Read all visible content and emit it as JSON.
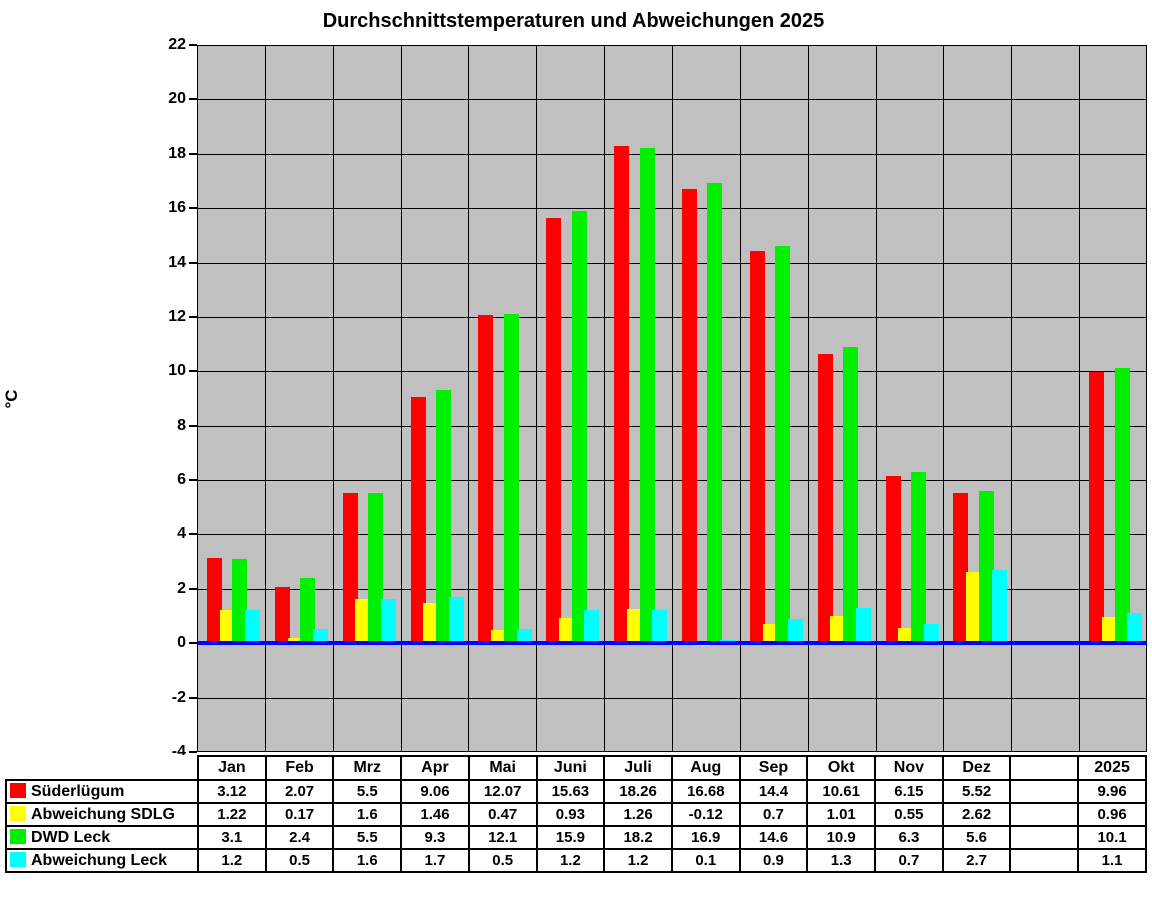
{
  "chart_data": {
    "type": "bar",
    "title": "Durchschnittstemperaturen und Abweichungen 2025",
    "ylabel": "°C",
    "xlabel": "",
    "ylim": [
      -4,
      22
    ],
    "ytick_step": 2,
    "grid": true,
    "plot_bg": "#C0C0C0",
    "gridline_color": "#000000",
    "zero_line_color": "#0000FF",
    "legend_position": "table-left",
    "categories": [
      "Jan",
      "Feb",
      "Mrz",
      "Apr",
      "Mai",
      "Juni",
      "Juli",
      "Aug",
      "Sep",
      "Okt",
      "Nov",
      "Dez",
      "",
      "2025"
    ],
    "series": [
      {
        "name": "Süderlügum",
        "color": "#FF0000",
        "values": [
          3.12,
          2.07,
          5.5,
          9.06,
          12.07,
          15.63,
          18.26,
          16.68,
          14.4,
          10.61,
          6.15,
          5.52,
          null,
          9.96
        ]
      },
      {
        "name": "Abweichung SDLG",
        "color": "#FFFF00",
        "values": [
          1.22,
          0.17,
          1.6,
          1.46,
          0.47,
          0.93,
          1.26,
          -0.12,
          0.7,
          1.01,
          0.55,
          2.62,
          null,
          0.96
        ]
      },
      {
        "name": "DWD Leck",
        "color": "#00F000",
        "values": [
          3.1,
          2.4,
          5.5,
          9.3,
          12.1,
          15.9,
          18.2,
          16.9,
          14.6,
          10.9,
          6.3,
          5.6,
          null,
          10.1
        ]
      },
      {
        "name": "Abweichung Leck",
        "color": "#00FFFF",
        "values": [
          1.2,
          0.5,
          1.6,
          1.7,
          0.5,
          1.2,
          1.2,
          0.1,
          0.9,
          1.3,
          0.7,
          2.7,
          null,
          1.1
        ]
      }
    ]
  },
  "table": {
    "columns": [
      "Jan",
      "Feb",
      "Mrz",
      "Apr",
      "Mai",
      "Juni",
      "Juli",
      "Aug",
      "Sep",
      "Okt",
      "Nov",
      "Dez",
      "",
      "2025"
    ],
    "rows": [
      {
        "label": "Süderlügum",
        "color": "#FF0000",
        "cells": [
          "3.12",
          "2.07",
          "5.5",
          "9.06",
          "12.07",
          "15.63",
          "18.26",
          "16.68",
          "14.4",
          "10.61",
          "6.15",
          "5.52",
          "",
          "9.96"
        ]
      },
      {
        "label": "Abweichung SDLG",
        "color": "#FFFF00",
        "cells": [
          "1.22",
          "0.17",
          "1.6",
          "1.46",
          "0.47",
          "0.93",
          "1.26",
          "-0.12",
          "0.7",
          "1.01",
          "0.55",
          "2.62",
          "",
          "0.96"
        ]
      },
      {
        "label": "DWD Leck",
        "color": "#00F000",
        "cells": [
          "3.1",
          "2.4",
          "5.5",
          "9.3",
          "12.1",
          "15.9",
          "18.2",
          "16.9",
          "14.6",
          "10.9",
          "6.3",
          "5.6",
          "",
          "10.1"
        ]
      },
      {
        "label": "Abweichung Leck",
        "color": "#00FFFF",
        "cells": [
          "1.2",
          "0.5",
          "1.6",
          "1.7",
          "0.5",
          "1.2",
          "1.2",
          "0.1",
          "0.9",
          "1.3",
          "0.7",
          "2.7",
          "",
          "1.1"
        ]
      }
    ]
  }
}
